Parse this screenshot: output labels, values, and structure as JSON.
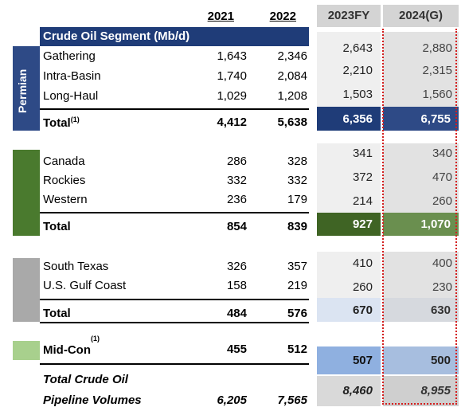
{
  "columns": {
    "y2021": "2021",
    "y2022": "2022",
    "y2023": "2023FY",
    "y2024": "2024(G)"
  },
  "segment_title": "Crude Oil Segment (Mb/d)",
  "permian": {
    "label": "Permian",
    "rows": [
      {
        "name": "Gathering",
        "v2021": "1,643",
        "v2022": "2,346",
        "v2023": "2,643",
        "v2024": "2,880"
      },
      {
        "name": "Intra-Basin",
        "v2021": "1,740",
        "v2022": "2,084",
        "v2023": "2,210",
        "v2024": "2,315"
      },
      {
        "name": "Long-Haul",
        "v2021": "1,029",
        "v2022": "1,208",
        "v2023": "1,503",
        "v2024": "1,560"
      }
    ],
    "total": {
      "name": "Total",
      "note": "(1)",
      "v2021": "4,412",
      "v2022": "5,638",
      "v2023": "6,356",
      "v2024": "6,755"
    },
    "color": "#2e4a86"
  },
  "canada_group": {
    "rows": [
      {
        "name": "Canada",
        "v2021": "286",
        "v2022": "328",
        "v2023": "341",
        "v2024": "340"
      },
      {
        "name": "Rockies",
        "v2021": "332",
        "v2022": "332",
        "v2023": "372",
        "v2024": "470"
      },
      {
        "name": "Western",
        "v2021": "236",
        "v2022": "179",
        "v2023": "214",
        "v2024": "260"
      }
    ],
    "total": {
      "name": "Total",
      "v2021": "854",
      "v2022": "839",
      "v2023": "927",
      "v2024": "1,070"
    },
    "color": "#4a7a2e"
  },
  "gulf_group": {
    "rows": [
      {
        "name": "South Texas",
        "v2021": "326",
        "v2022": "357",
        "v2023": "410",
        "v2024": "400"
      },
      {
        "name": "U.S. Gulf Coast",
        "v2021": "158",
        "v2022": "219",
        "v2023": "260",
        "v2024": "230"
      }
    ],
    "total": {
      "name": "Total",
      "v2021": "484",
      "v2022": "576",
      "v2023": "670",
      "v2024": "630"
    },
    "color": "#a9a9a9"
  },
  "midcon": {
    "name": "Mid-Con",
    "note": "(1)",
    "v2021": "455",
    "v2022": "512",
    "v2023": "507",
    "v2024": "500",
    "color": "#a8d08d"
  },
  "grand_total": {
    "line1": "Total Crude Oil",
    "line2": "Pipeline Volumes",
    "v2021": "6,205",
    "v2022": "7,565",
    "v2023": "8,460",
    "v2024": "8,955"
  }
}
